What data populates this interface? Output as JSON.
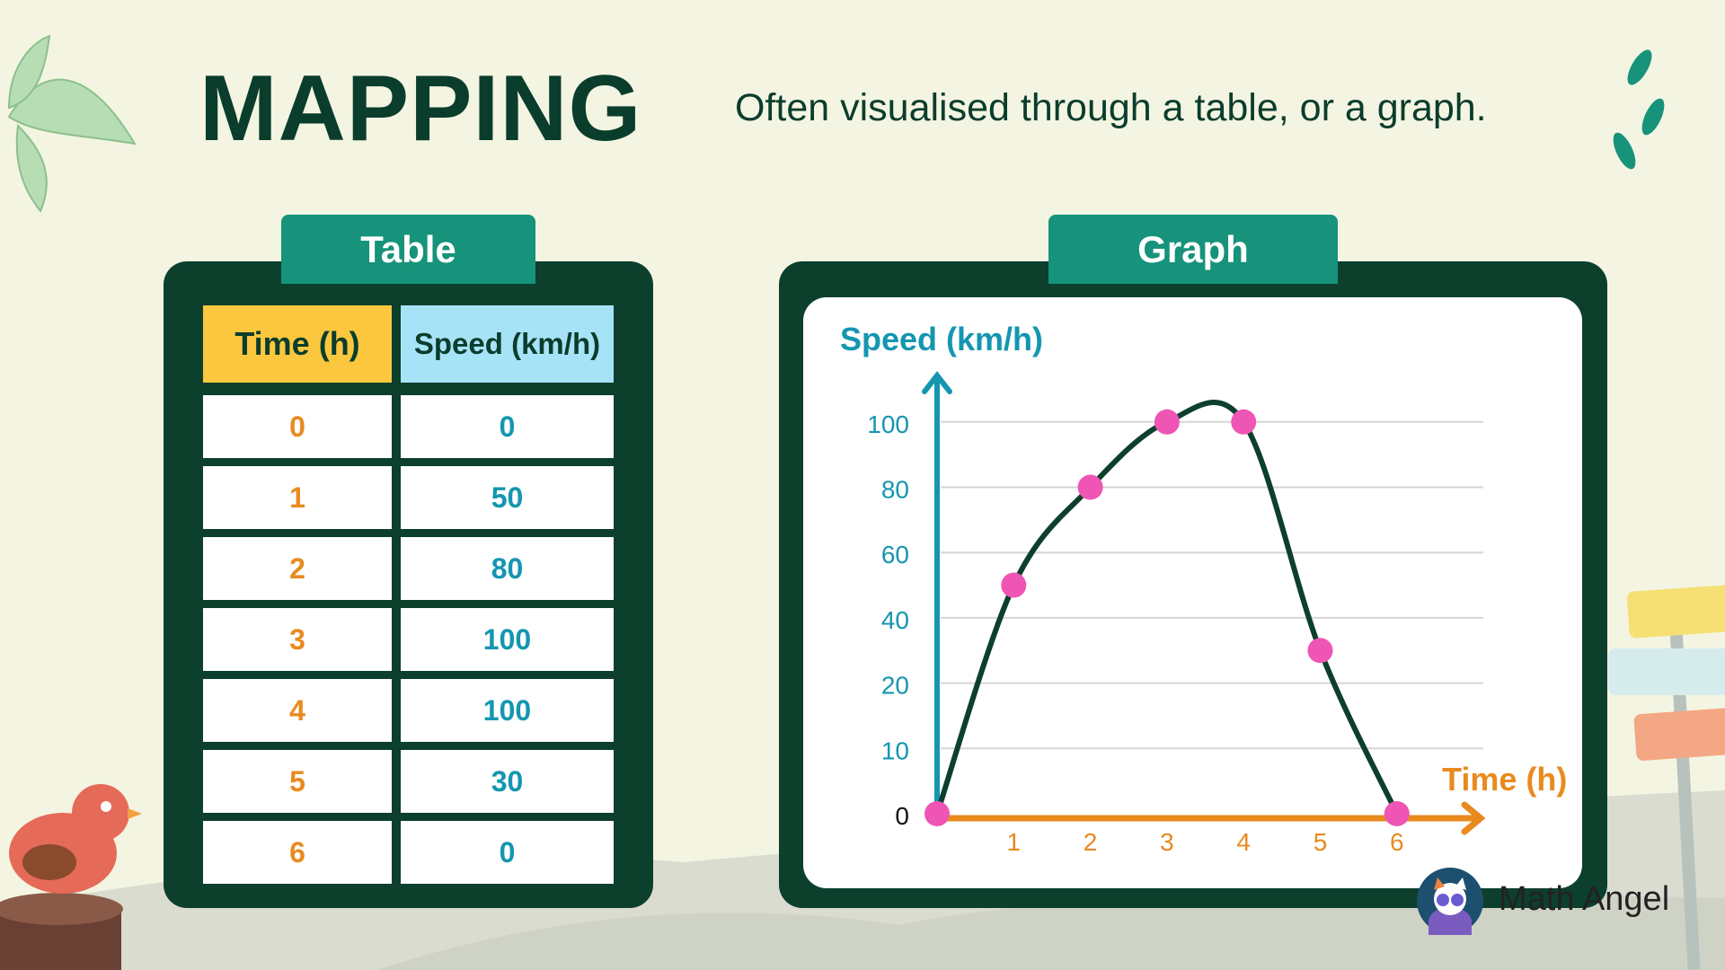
{
  "header": {
    "title": "MAPPING",
    "subtitle": "Often visualised through a table, or a graph."
  },
  "table_panel": {
    "tab_label": "Table",
    "columns": [
      "Time (h)",
      "Speed (km/h)"
    ],
    "rows": [
      [
        "0",
        "0"
      ],
      [
        "1",
        "50"
      ],
      [
        "2",
        "80"
      ],
      [
        "3",
        "100"
      ],
      [
        "4",
        "100"
      ],
      [
        "5",
        "30"
      ],
      [
        "6",
        "0"
      ]
    ]
  },
  "graph_panel": {
    "tab_label": "Graph"
  },
  "chart_data": {
    "type": "line",
    "xlabel": "Time (h)",
    "ylabel": "Speed (km/h)",
    "x": [
      0,
      1,
      2,
      3,
      4,
      5,
      6
    ],
    "y": [
      0,
      50,
      80,
      100,
      100,
      30,
      0
    ],
    "x_ticks": [
      "1",
      "2",
      "3",
      "4",
      "5",
      "6"
    ],
    "y_ticks": [
      "0",
      "10",
      "20",
      "40",
      "60",
      "80",
      "100"
    ],
    "y_tick_values": [
      0,
      10,
      20,
      40,
      60,
      80,
      100
    ],
    "xlim": [
      0,
      6
    ],
    "ylim": [
      0,
      100
    ],
    "smooth": true,
    "grid": "horizontal",
    "colors": {
      "line": "#0d3f2d",
      "points": "#ee55b4",
      "x_axis": "#e98a1f",
      "y_axis": "#1496b0"
    }
  },
  "branding": {
    "name": "Math Angel"
  },
  "colors": {
    "background": "#f3f5e2",
    "panel": "#0d3f2d",
    "tab": "#16937a",
    "time_header": "#fbc73e",
    "speed_header": "#a6e3f7",
    "time_values": "#e98a1f",
    "speed_values": "#1496b0"
  }
}
